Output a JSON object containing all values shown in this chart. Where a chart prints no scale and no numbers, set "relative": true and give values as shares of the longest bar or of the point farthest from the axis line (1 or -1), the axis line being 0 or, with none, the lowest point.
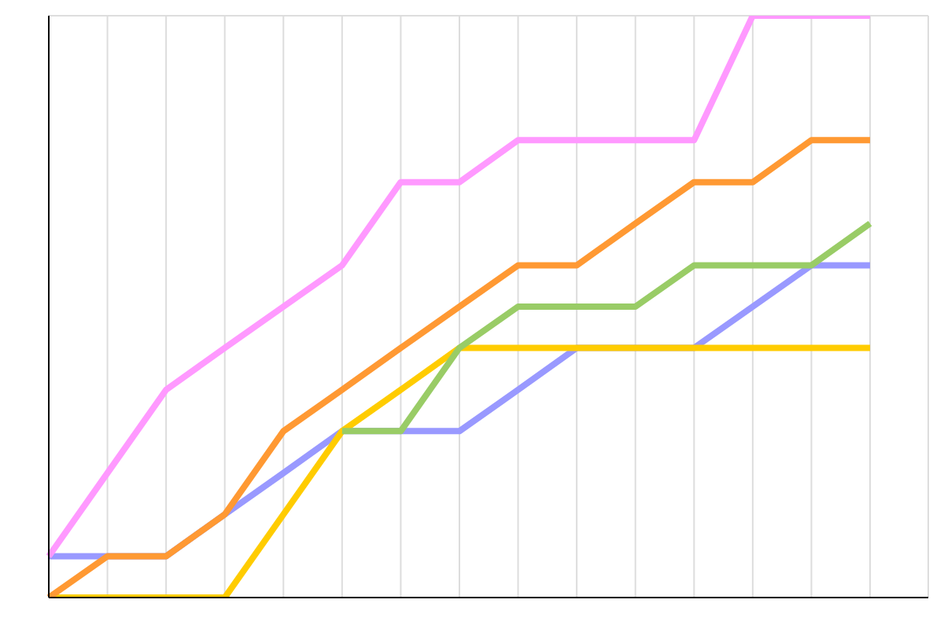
{
  "chart_data": {
    "type": "line",
    "relative": true,
    "grid": true,
    "marker": "none",
    "line_style": "solid",
    "categories": [
      null,
      null,
      null,
      null,
      null,
      null,
      null,
      null,
      null,
      null,
      null,
      null,
      null,
      null,
      null
    ],
    "series": [
      {
        "color": "#9999ff",
        "values": [
          0.071,
          0.071,
          0.071,
          0.143,
          0.214,
          0.286,
          0.286,
          0.286,
          0.357,
          0.429,
          0.429,
          0.429,
          0.5,
          0.571,
          0.571
        ]
      },
      {
        "color": "#ffcc00",
        "values": [
          0,
          0,
          0,
          0,
          0.143,
          0.286,
          0.357,
          0.429,
          0.429,
          0.429,
          0.429,
          0.429,
          0.429,
          0.429,
          0.429
        ]
      },
      {
        "color": "#99cc66",
        "values": [
          null,
          null,
          null,
          null,
          null,
          0.286,
          0.286,
          0.429,
          0.5,
          0.5,
          0.5,
          0.571,
          0.571,
          0.571,
          0.643
        ]
      },
      {
        "color": "#ff9933",
        "values": [
          0,
          0.071,
          0.071,
          0.143,
          0.286,
          0.357,
          0.429,
          0.5,
          0.571,
          0.571,
          0.643,
          0.714,
          0.714,
          0.786,
          0.786
        ]
      },
      {
        "color": "#ff99ff",
        "values": [
          0.071,
          0.214,
          0.357,
          0.429,
          0.5,
          0.571,
          0.714,
          0.714,
          0.786,
          0.786,
          0.786,
          0.786,
          1,
          1,
          1
        ]
      }
    ]
  }
}
